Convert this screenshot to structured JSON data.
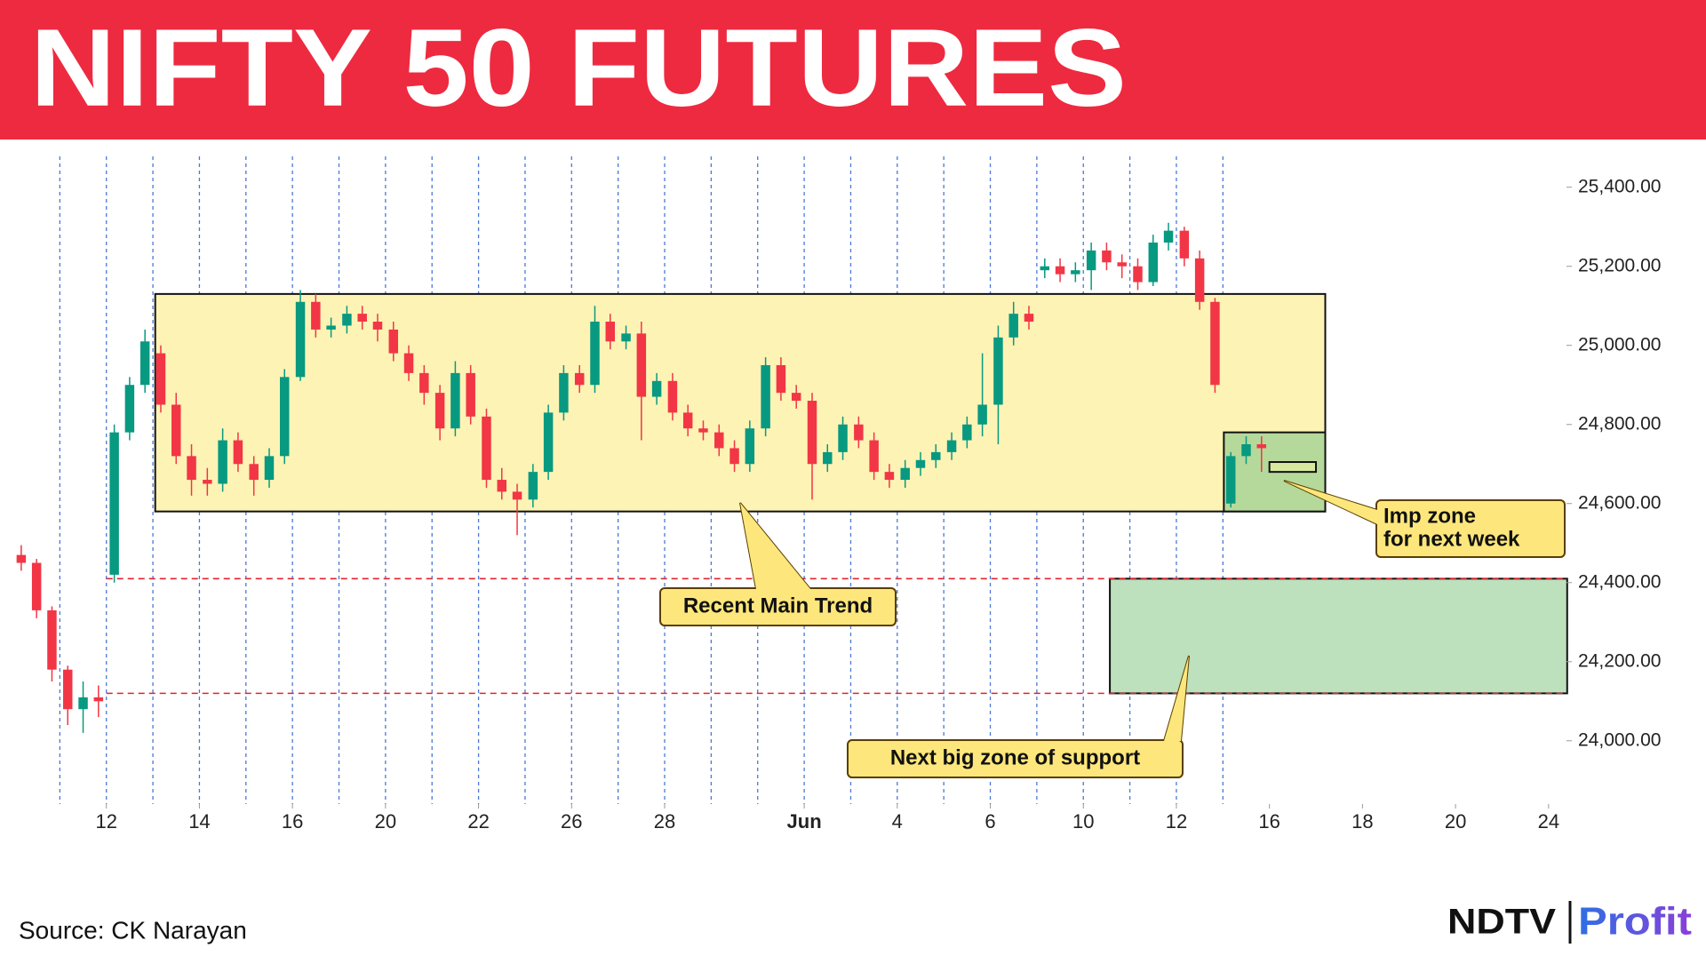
{
  "header": {
    "title": "NIFTY 50 FUTURES"
  },
  "footer": {
    "source": "Source: CK Narayan",
    "logo_left": "NDTV",
    "logo_right": "Profit"
  },
  "chart_data": {
    "type": "candlestick",
    "up_color": "#089981",
    "down_color": "#f23645",
    "xlim": [
      -2,
      31.5
    ],
    "ylim": [
      23840,
      25460
    ],
    "xticks": [
      {
        "value": 0,
        "label": "12"
      },
      {
        "value": 2,
        "label": "14"
      },
      {
        "value": 4,
        "label": "16"
      },
      {
        "value": 6,
        "label": "20"
      },
      {
        "value": 8,
        "label": "22"
      },
      {
        "value": 10,
        "label": "26"
      },
      {
        "value": 12,
        "label": "28"
      },
      {
        "value": 15,
        "label": "Jun"
      },
      {
        "value": 17,
        "label": "4"
      },
      {
        "value": 19,
        "label": "6"
      },
      {
        "value": 21,
        "label": "10"
      },
      {
        "value": 23,
        "label": "12"
      },
      {
        "value": 25,
        "label": "16"
      },
      {
        "value": 27,
        "label": "18"
      },
      {
        "value": 29,
        "label": "20"
      },
      {
        "value": 31,
        "label": "24"
      }
    ],
    "yticks": [
      {
        "value": 25400,
        "label": "25,400.00"
      },
      {
        "value": 25200,
        "label": "25,200.00"
      },
      {
        "value": 25000,
        "label": "25,000.00"
      },
      {
        "value": 24800,
        "label": "24,800.00"
      },
      {
        "value": 24600,
        "label": "24,600.00"
      },
      {
        "value": 24400,
        "label": "24,400.00"
      },
      {
        "value": 24200,
        "label": "24,200.00"
      },
      {
        "value": 24000,
        "label": "24,000.00"
      }
    ],
    "x": [
      -1.83,
      -1.5,
      -1.17,
      -0.83,
      -0.5,
      -0.17,
      0.17,
      0.5,
      0.83,
      1.17,
      1.5,
      1.83,
      2.17,
      2.5,
      2.83,
      3.17,
      3.5,
      3.83,
      4.17,
      4.5,
      4.83,
      5.17,
      5.5,
      5.83,
      6.17,
      6.5,
      6.83,
      7.17,
      7.5,
      7.83,
      8.17,
      8.5,
      8.83,
      9.17,
      9.5,
      9.83,
      10.17,
      10.5,
      10.83,
      11.17,
      11.5,
      11.83,
      12.17,
      12.5,
      12.83,
      13.17,
      13.5,
      13.83,
      14.17,
      14.5,
      14.83,
      15.17,
      15.5,
      15.83,
      16.17,
      16.5,
      16.83,
      17.17,
      17.5,
      17.83,
      18.17,
      18.5,
      18.83,
      19.17,
      19.5,
      19.83,
      20.17,
      20.5,
      20.83,
      21.17,
      21.5,
      21.83,
      22.17,
      22.5,
      22.83,
      23.17,
      23.5,
      23.83,
      24.17,
      24.5,
      24.83
    ],
    "ohlc": [
      [
        24470,
        24495,
        24430,
        24450
      ],
      [
        24450,
        24460,
        24310,
        24330
      ],
      [
        24330,
        24340,
        24150,
        24180
      ],
      [
        24180,
        24190,
        24040,
        24080
      ],
      [
        24080,
        24150,
        24020,
        24110
      ],
      [
        24110,
        24140,
        24060,
        24100
      ],
      [
        24420,
        24800,
        24400,
        24780
      ],
      [
        24780,
        24920,
        24760,
        24900
      ],
      [
        24900,
        25040,
        24880,
        25010
      ],
      [
        24980,
        25000,
        24830,
        24850
      ],
      [
        24850,
        24880,
        24700,
        24720
      ],
      [
        24720,
        24750,
        24620,
        24660
      ],
      [
        24660,
        24690,
        24620,
        24650
      ],
      [
        24650,
        24790,
        24630,
        24760
      ],
      [
        24760,
        24780,
        24680,
        24700
      ],
      [
        24700,
        24720,
        24620,
        24660
      ],
      [
        24660,
        24740,
        24640,
        24720
      ],
      [
        24720,
        24940,
        24700,
        24920
      ],
      [
        24920,
        25140,
        24910,
        25110
      ],
      [
        25110,
        25130,
        25020,
        25040
      ],
      [
        25040,
        25070,
        25020,
        25050
      ],
      [
        25050,
        25100,
        25030,
        25080
      ],
      [
        25080,
        25100,
        25040,
        25060
      ],
      [
        25060,
        25080,
        25010,
        25040
      ],
      [
        25040,
        25060,
        24960,
        24980
      ],
      [
        24980,
        25000,
        24910,
        24930
      ],
      [
        24930,
        24950,
        24850,
        24880
      ],
      [
        24880,
        24900,
        24760,
        24790
      ],
      [
        24790,
        24960,
        24770,
        24930
      ],
      [
        24930,
        24950,
        24800,
        24820
      ],
      [
        24820,
        24840,
        24640,
        24660
      ],
      [
        24660,
        24690,
        24610,
        24630
      ],
      [
        24630,
        24650,
        24520,
        24610
      ],
      [
        24610,
        24700,
        24590,
        24680
      ],
      [
        24680,
        24850,
        24660,
        24830
      ],
      [
        24830,
        24950,
        24810,
        24930
      ],
      [
        24930,
        24950,
        24880,
        24900
      ],
      [
        24900,
        25100,
        24880,
        25060
      ],
      [
        25060,
        25080,
        24990,
        25010
      ],
      [
        25010,
        25050,
        24990,
        25030
      ],
      [
        25030,
        25060,
        24760,
        24870
      ],
      [
        24870,
        24930,
        24850,
        24910
      ],
      [
        24910,
        24930,
        24810,
        24830
      ],
      [
        24830,
        24850,
        24770,
        24790
      ],
      [
        24790,
        24810,
        24760,
        24780
      ],
      [
        24780,
        24800,
        24720,
        24740
      ],
      [
        24740,
        24760,
        24680,
        24700
      ],
      [
        24700,
        24810,
        24680,
        24790
      ],
      [
        24790,
        24970,
        24770,
        24950
      ],
      [
        24950,
        24970,
        24860,
        24880
      ],
      [
        24880,
        24900,
        24840,
        24860
      ],
      [
        24860,
        24880,
        24610,
        24700
      ],
      [
        24700,
        24750,
        24680,
        24730
      ],
      [
        24730,
        24820,
        24710,
        24800
      ],
      [
        24800,
        24820,
        24740,
        24760
      ],
      [
        24760,
        24780,
        24660,
        24680
      ],
      [
        24680,
        24700,
        24640,
        24660
      ],
      [
        24660,
        24710,
        24640,
        24690
      ],
      [
        24690,
        24730,
        24670,
        24710
      ],
      [
        24710,
        24750,
        24690,
        24730
      ],
      [
        24730,
        24780,
        24710,
        24760
      ],
      [
        24760,
        24820,
        24740,
        24800
      ],
      [
        24800,
        24980,
        24770,
        24850
      ],
      [
        24850,
        25050,
        24750,
        25020
      ],
      [
        25020,
        25110,
        25000,
        25080
      ],
      [
        25080,
        25100,
        25040,
        25060
      ],
      [
        25190,
        25220,
        25170,
        25200
      ],
      [
        25200,
        25220,
        25160,
        25180
      ],
      [
        25180,
        25210,
        25160,
        25190
      ],
      [
        25190,
        25260,
        25140,
        25240
      ],
      [
        25240,
        25260,
        25190,
        25210
      ],
      [
        25210,
        25230,
        25170,
        25200
      ],
      [
        25200,
        25220,
        25140,
        25160
      ],
      [
        25160,
        25280,
        25150,
        25260
      ],
      [
        25260,
        25310,
        25240,
        25290
      ],
      [
        25290,
        25300,
        25200,
        25220
      ],
      [
        25220,
        25240,
        25090,
        25110
      ],
      [
        25110,
        25120,
        24880,
        24900
      ],
      [
        24600,
        24730,
        24590,
        24720
      ],
      [
        24720,
        24770,
        24700,
        24750
      ],
      [
        24750,
        24770,
        24680,
        24740
      ]
    ],
    "zones": [
      {
        "x0": 1.05,
        "x1": 26.2,
        "y0": 24580,
        "y1": 25130,
        "color": "#fdf3b5"
      },
      {
        "x0": 24.02,
        "x1": 26.2,
        "y0": 24580,
        "y1": 24780,
        "color": "#b5d99a"
      },
      {
        "x0": 25.0,
        "x1": 26.0,
        "y0": 24680,
        "y1": 24705,
        "color": "#d7e89f"
      },
      {
        "x0": 21.57,
        "x1": 31.4,
        "y0": 24120,
        "y1": 24410,
        "color": "#bde0bd"
      }
    ],
    "levels": [
      {
        "value": 24410,
        "x0": 0,
        "x1": 31.4
      },
      {
        "value": 24120,
        "x0": 0,
        "x1": 31.4
      }
    ],
    "annotations": [
      [
        "Recent Main Trend"
      ],
      [
        "Next big zone of support"
      ],
      [
        "Imp zone",
        "for next week"
      ]
    ]
  }
}
